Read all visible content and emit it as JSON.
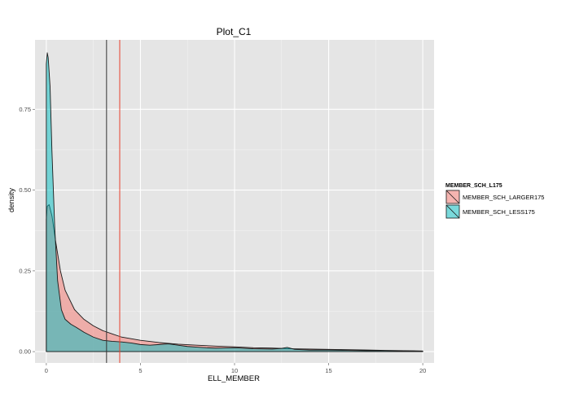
{
  "chart_data": {
    "type": "area",
    "title": "Plot_C1",
    "xlabel": "ELL_MEMBER",
    "ylabel": "density",
    "xlim": [
      -0.6,
      20.6
    ],
    "ylim": [
      -0.035,
      0.965
    ],
    "x_ticks": [
      0,
      5,
      10,
      15,
      20
    ],
    "x_tick_labels": [
      "0",
      "5",
      "10",
      "15",
      "20"
    ],
    "y_ticks": [
      0,
      0.25,
      0.5,
      0.75
    ],
    "y_tick_labels": [
      "0.00",
      "0.25",
      "0.50",
      "0.75"
    ],
    "grid": true,
    "legend": {
      "title": "MEMBER_SCH_L175",
      "placement": "right",
      "entries": [
        "MEMBER_SCH_LARGER175",
        "MEMBER_SCH_LESS175"
      ]
    },
    "series": [
      {
        "name": "MEMBER_SCH_LARGER175",
        "color": "#f8766d",
        "x": [
          0,
          0.05,
          0.15,
          0.3,
          0.5,
          0.75,
          1.0,
          1.5,
          2.0,
          2.5,
          3.0,
          3.5,
          4.0,
          5.0,
          6.0,
          7.0,
          8.0,
          9.0,
          10.0,
          11.0,
          12.0,
          13.0,
          14.0,
          15.0,
          16.0,
          17.0,
          18.0,
          19.0,
          20.0
        ],
        "values": [
          0.41,
          0.45,
          0.455,
          0.42,
          0.34,
          0.25,
          0.19,
          0.13,
          0.1,
          0.08,
          0.065,
          0.055,
          0.045,
          0.035,
          0.028,
          0.023,
          0.02,
          0.017,
          0.015,
          0.012,
          0.011,
          0.009,
          0.008,
          0.007,
          0.006,
          0.005,
          0.004,
          0.003,
          0.002
        ]
      },
      {
        "name": "MEMBER_SCH_LESS175",
        "color": "#00bfc4",
        "x": [
          0,
          0.05,
          0.1,
          0.2,
          0.3,
          0.45,
          0.6,
          0.8,
          1.0,
          1.3,
          1.6,
          2.0,
          2.5,
          3.0,
          3.5,
          4.0,
          4.5,
          5.0,
          5.5,
          6.0,
          6.5,
          7.0,
          7.5,
          8.0,
          8.5,
          9.0,
          10.0,
          11.0,
          12.0,
          12.5,
          12.8,
          13.2,
          14.0,
          15.0,
          16.0,
          17.0,
          18.0,
          19.0,
          20.0
        ],
        "values": [
          0.89,
          0.925,
          0.91,
          0.82,
          0.62,
          0.38,
          0.22,
          0.13,
          0.1,
          0.085,
          0.075,
          0.06,
          0.045,
          0.035,
          0.032,
          0.03,
          0.027,
          0.022,
          0.02,
          0.022,
          0.024,
          0.02,
          0.016,
          0.014,
          0.012,
          0.011,
          0.012,
          0.009,
          0.008,
          0.01,
          0.013,
          0.007,
          0.005,
          0.005,
          0.004,
          0.003,
          0.003,
          0.002,
          0.001
        ]
      }
    ],
    "vlines": [
      {
        "x": 3.2,
        "color": "#333333"
      },
      {
        "x": 3.9,
        "color": "#e8402d"
      }
    ]
  }
}
